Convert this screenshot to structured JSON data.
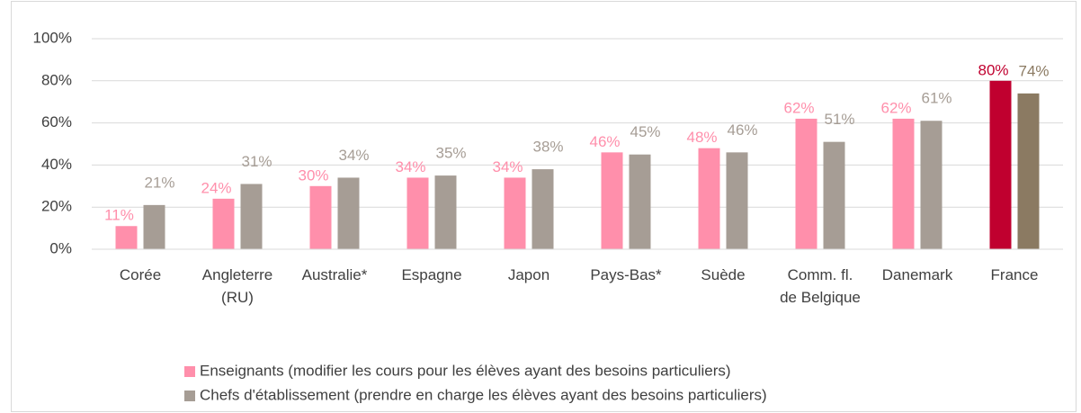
{
  "chart_data": {
    "type": "bar",
    "categories": [
      "Corée",
      "Angleterre (RU)",
      "Australie*",
      "Espagne",
      "Japon",
      "Pays-Bas*",
      "Suède",
      "Comm. fl. de Belgique",
      "Danemark",
      "France"
    ],
    "series": [
      {
        "name": "Enseignants (modifier les cours pour les élèves ayant des besoins particuliers)",
        "color": "#ff8fab",
        "colors": [
          "#ff8fab",
          "#ff8fab",
          "#ff8fab",
          "#ff8fab",
          "#ff8fab",
          "#ff8fab",
          "#ff8fab",
          "#ff8fab",
          "#ff8fab",
          "#c0002f"
        ],
        "values": [
          11,
          24,
          30,
          34,
          34,
          46,
          48,
          62,
          62,
          80
        ],
        "value_labels": [
          "11%",
          "24%",
          "30%",
          "34%",
          "34%",
          "46%",
          "48%",
          "62%",
          "62%",
          "80%"
        ]
      },
      {
        "name": "Chefs d'établissement (prendre en charge les élèves ayant des besoins particuliers)",
        "color": "#a69d95",
        "colors": [
          "#a69d95",
          "#a69d95",
          "#a69d95",
          "#a69d95",
          "#a69d95",
          "#a69d95",
          "#a69d95",
          "#a69d95",
          "#a69d95",
          "#8b7a62"
        ],
        "values": [
          21,
          31,
          34,
          35,
          38,
          45,
          46,
          51,
          61,
          74
        ],
        "value_labels": [
          "21%",
          "31%",
          "34%",
          "35%",
          "38%",
          "45%",
          "46%",
          "51%",
          "61%",
          "74%"
        ]
      }
    ],
    "ylim": [
      0,
      100
    ],
    "yticks": [
      {
        "value": 0,
        "label": "0%"
      },
      {
        "value": 20,
        "label": "20%"
      },
      {
        "value": 40,
        "label": "40%"
      },
      {
        "value": 60,
        "label": "60%"
      },
      {
        "value": 80,
        "label": "80%"
      },
      {
        "value": 100,
        "label": "100%"
      }
    ],
    "grid": true,
    "legend": "bottom"
  }
}
